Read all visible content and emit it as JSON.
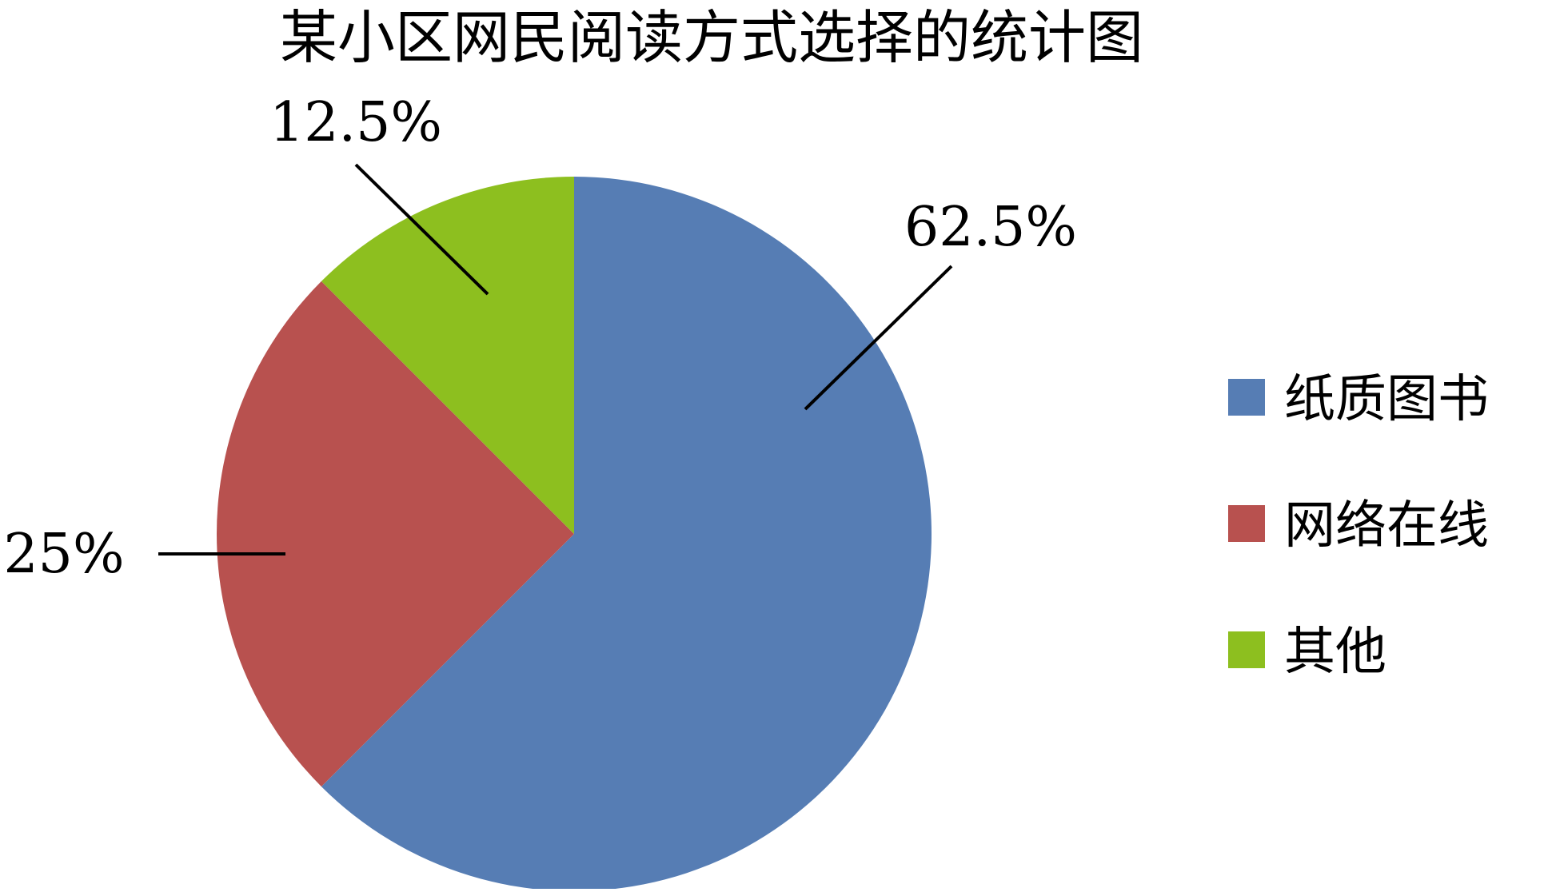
{
  "chart_data": {
    "type": "pie",
    "title": "某小区网民阅读方式选择的统计图",
    "categories": [
      "纸质图书",
      "网络在线",
      "其他"
    ],
    "values": [
      62.5,
      25,
      12.5
    ],
    "labels": [
      "62.5%",
      "25%",
      "12.5%"
    ],
    "colors": [
      "#567DB4",
      "#B8514F",
      "#8DBF1F"
    ],
    "legend_position": "right",
    "start_angle": "12 o'clock",
    "direction": "clockwise"
  }
}
